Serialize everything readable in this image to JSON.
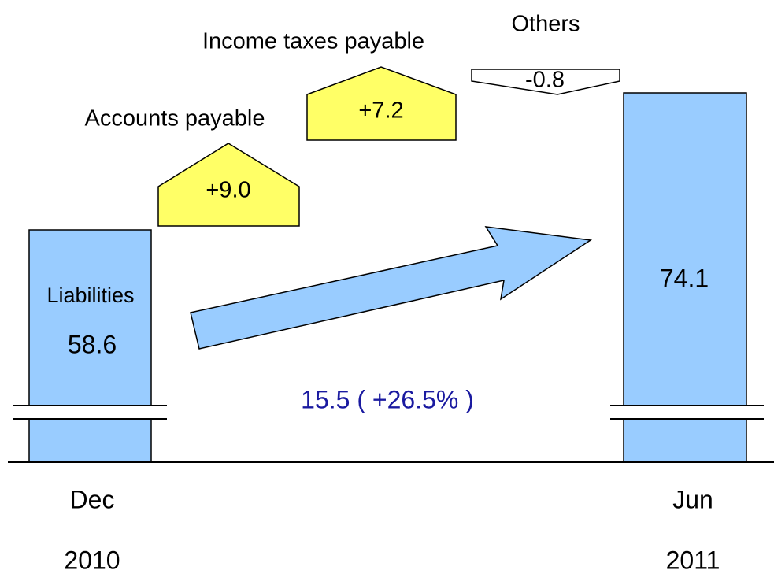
{
  "labels": {
    "accounts_payable": "Accounts payable",
    "income_taxes_payable": "Income taxes payable",
    "others": "Others",
    "liabilities": "Liabilities"
  },
  "changes": {
    "accounts_payable": "+9.0",
    "income_taxes_payable": "+7.2",
    "others": "-0.8"
  },
  "start": {
    "value": "58.6",
    "month": "Dec",
    "year": "2010"
  },
  "end": {
    "value": "74.1",
    "month": "Jun",
    "year": "2011"
  },
  "total_change": "15.5 ( +26.5% )"
}
